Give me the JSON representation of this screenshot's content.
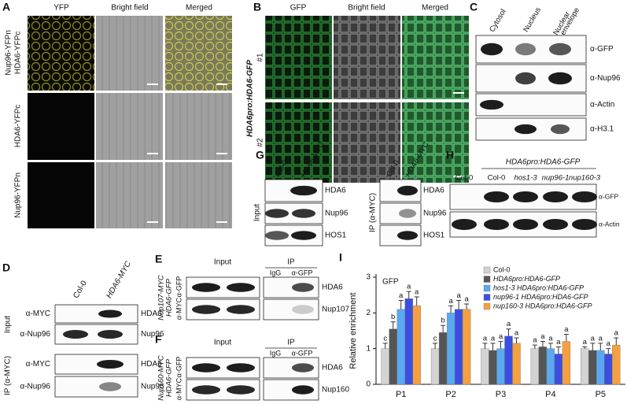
{
  "panels": {
    "A": {
      "letter": "A",
      "columns": [
        "YFP",
        "Bright field",
        "Merged"
      ],
      "rows": [
        [
          "Nup96-YFPn",
          "HDA6-YFPc"
        ],
        [
          "HDA6-YFPc"
        ],
        [
          "Nup96-YFPn"
        ]
      ]
    },
    "B": {
      "letter": "B",
      "label": "HDA6pro:HDA6-GFP",
      "columns": [
        "GFP",
        "Bright field",
        "Merged"
      ],
      "rows": [
        "#1",
        "#2"
      ]
    },
    "C": {
      "letter": "C",
      "columns": [
        [
          "Cytosol"
        ],
        [
          "Nucleus"
        ],
        [
          "Nuclear",
          "envelope"
        ]
      ],
      "rows": [
        "α-GFP",
        "α-Nup96",
        "α-Actin",
        "α-H3.1"
      ]
    },
    "D": {
      "letter": "D",
      "columns": [
        "Col-0",
        "HDA6-MYC"
      ],
      "groups": [
        {
          "label": "Input",
          "rows": [
            [
              "α-MYC",
              "HDA6"
            ],
            [
              "α-Nup96",
              "Nup96"
            ]
          ]
        },
        {
          "label": "IP (α-MYC)",
          "rows": [
            [
              "α-MYC",
              "HDA6"
            ],
            [
              "α-Nup96",
              "Nup96"
            ]
          ]
        }
      ]
    },
    "E": {
      "letter": "E",
      "strain": [
        "Nup107-MYC",
        "HDA6-GFP"
      ],
      "antibodies": [
        "α-GFP",
        "α-MYC"
      ],
      "input": "Input",
      "ip": "IP",
      "ip_columns": [
        "IgG",
        "α-GFP"
      ],
      "proteins": [
        "HDA6",
        "Nup107"
      ]
    },
    "F": {
      "letter": "F",
      "strain": [
        "Nup160-MYC",
        "HDA6-GFP"
      ],
      "antibodies": [
        "α-GFP",
        "α-MYC"
      ],
      "input": "Input",
      "ip": "IP",
      "ip_columns": [
        "IgG",
        "α-GFP"
      ],
      "proteins": [
        "HDA6",
        "Nup160"
      ]
    },
    "G": {
      "letter": "G",
      "columns": [
        "Col-0",
        "HDA6-MYC"
      ],
      "groups": [
        "Input",
        "IP (α-MYC)"
      ],
      "proteins": [
        "HDA6",
        "Nup96",
        "HOS1"
      ]
    },
    "H": {
      "letter": "H",
      "header": "HDA6pro:HDA6-GFP",
      "columns": [
        "Col-0",
        "Col-0",
        "hos1-3",
        "nup96-1",
        "nup160-3"
      ],
      "rows": [
        "α-GFP",
        "α-Actin"
      ]
    },
    "I": {
      "letter": "I"
    }
  },
  "chart_data": {
    "type": "bar",
    "ylabel": "Relative enrichment",
    "annotation": "GFP",
    "categories": [
      "P1",
      "P2",
      "P3",
      "P4",
      "P5"
    ],
    "ylim": [
      0,
      3
    ],
    "yticks": [
      0,
      1,
      2,
      3
    ],
    "series": [
      {
        "name": "Col-0",
        "color": "#d3d3d3",
        "values": [
          1.0,
          1.0,
          1.0,
          1.0,
          1.0
        ],
        "errors": [
          0.15,
          0.15,
          0.15,
          0.1,
          0.05
        ],
        "letters": [
          "c",
          "c",
          "a",
          "a",
          "a"
        ]
      },
      {
        "name": "HDA6pro:HDA6-GFP",
        "color": "#555555",
        "values": [
          1.55,
          1.45,
          0.95,
          1.05,
          0.95
        ],
        "errors": [
          0.2,
          0.2,
          0.2,
          0.15,
          0.2
        ],
        "letters": [
          "b",
          "b",
          "a",
          "a",
          "a"
        ]
      },
      {
        "name": "hos1-3 HDA6pro:HDA6-GFP",
        "color": "#5aa9f0",
        "values": [
          2.1,
          2.0,
          1.0,
          1.0,
          0.95
        ],
        "errors": [
          0.25,
          0.2,
          0.2,
          0.15,
          0.2
        ],
        "letters": [
          "a",
          "a",
          "a",
          "a",
          "a"
        ]
      },
      {
        "name": "nup96-1 HDA6pro:HDA6-GFP",
        "color": "#3b4ee0",
        "values": [
          2.4,
          2.1,
          1.35,
          0.85,
          0.85
        ],
        "errors": [
          0.2,
          0.25,
          0.2,
          0.2,
          0.15
        ],
        "letters": [
          "a",
          "a",
          "a",
          "a",
          "a"
        ]
      },
      {
        "name": "nup160-3 HDA6pro:HDA6-GFP",
        "color": "#f5a040",
        "values": [
          2.2,
          2.1,
          1.15,
          1.2,
          1.1
        ],
        "errors": [
          0.25,
          0.15,
          0.15,
          0.2,
          0.2
        ],
        "letters": [
          "a",
          "a",
          "a",
          "a",
          "a"
        ]
      }
    ]
  }
}
